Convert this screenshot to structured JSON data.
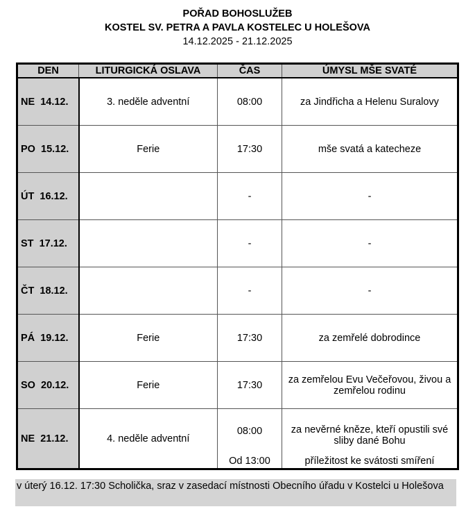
{
  "header": {
    "title": "POŘAD BOHOSLUŽEB",
    "church": "KOSTEL SV. PETRA A PAVLA KOSTELEC U HOLEŠOVA",
    "dates": "14.12.2025 - 21.12.2025"
  },
  "columns": [
    "DEN",
    "LITURGICKÁ OSLAVA",
    "ČAS",
    "ÚMYSL MŠE SVATÉ"
  ],
  "rows": [
    {
      "day": "NE  14.12.",
      "feast": "3. neděle adventní",
      "time": "08:00",
      "intention": "za Jindřicha a Helenu Suralovy"
    },
    {
      "day": "PO  15.12.",
      "feast": "Ferie",
      "time": "17:30",
      "intention": "mše svatá a katecheze"
    },
    {
      "day": "ÚT  16.12.",
      "feast": "",
      "time": "-",
      "intention": "-"
    },
    {
      "day": "ST  17.12.",
      "feast": "",
      "time": "-",
      "intention": "-"
    },
    {
      "day": "ČT  18.12.",
      "feast": "",
      "time": "-",
      "intention": "-"
    },
    {
      "day": "PÁ  19.12.",
      "feast": "Ferie",
      "time": "17:30",
      "intention": "za zemřelé dobrodince"
    },
    {
      "day": "SO  20.12.",
      "feast": "Ferie",
      "time": "17:30",
      "intention": "za zemřelou Evu Večeřovou, živou a zemřelou rodinu"
    },
    {
      "day": "NE  21.12.",
      "feast": "4. neděle adventní",
      "time": "08:00",
      "intention": "za nevěrné kněze, kteří opustili své sliby dané Bohu",
      "time2": "Od 13:00",
      "intention2": "příležitost ke svátosti smíření"
    }
  ],
  "note": "v úterý 16.12. 17:30 Scholička, sraz v zasedací místnosti Obecního úřadu v Kostelci u Holešova"
}
